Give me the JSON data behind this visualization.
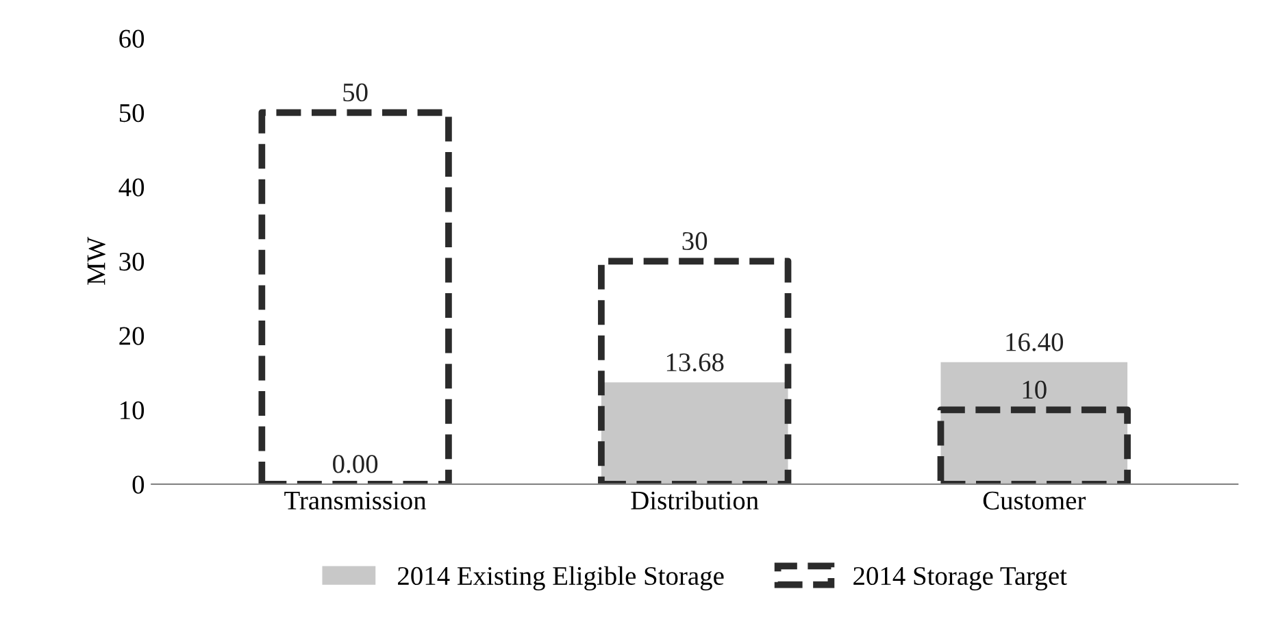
{
  "chart_data": {
    "type": "bar",
    "ylabel": "MW",
    "categories": [
      "Transmission",
      "Distribution",
      "Customer"
    ],
    "series": [
      {
        "name": "2014 Existing Eligible Storage",
        "color": "#c8c8c8",
        "values": [
          0,
          13.68,
          16.4
        ],
        "value_labels": [
          "0.00",
          "13.68",
          "16.40"
        ]
      },
      {
        "name": "2014 Storage Target",
        "color": "#2b2b2b",
        "line_style": "dashed",
        "values": [
          50,
          30,
          10
        ],
        "value_labels": [
          "50",
          "30",
          "10"
        ]
      }
    ],
    "ylim": [
      0,
      60
    ],
    "yticks": [
      0,
      10,
      20,
      30,
      40,
      50,
      60
    ],
    "grid": false,
    "legend": "bottom"
  }
}
